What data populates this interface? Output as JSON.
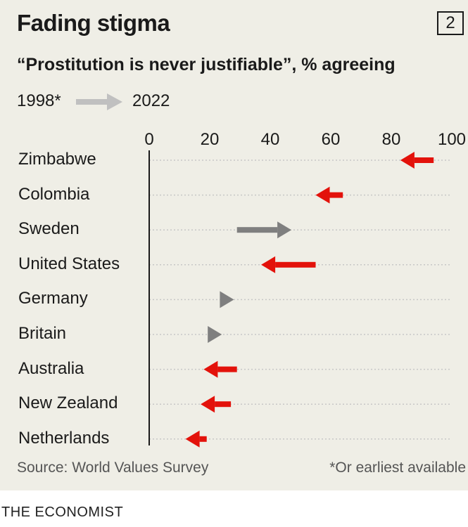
{
  "header": {
    "title": "Fading stigma",
    "chart_number": "2",
    "subtitle": "“Prostitution is never justifiable”, % agreeing"
  },
  "legend": {
    "start_label": "1998*",
    "end_label": "2022"
  },
  "footer": {
    "source": "Source: World Values Survey",
    "note": "*Or earliest available",
    "brand": "THE ECONOMIST"
  },
  "colors": {
    "decrease": "#e3120b",
    "increase": "#7f7f7f",
    "legend_arrow": "#c0c0c0",
    "grid": "#c7c7c7"
  },
  "chart_data": {
    "type": "arrow",
    "title": "Fading stigma",
    "subtitle": "“Prostitution is never justifiable”, % agreeing",
    "xlim": [
      0,
      100
    ],
    "x_ticks": [
      0,
      20,
      40,
      60,
      80,
      100
    ],
    "categories": [
      "Zimbabwe",
      "Colombia",
      "Sweden",
      "United States",
      "Germany",
      "Britain",
      "Australia",
      "New Zealand",
      "Netherlands"
    ],
    "series": [
      {
        "name": "1998*",
        "values": [
          94,
          64,
          29,
          55,
          26,
          24,
          29,
          27,
          19
        ]
      },
      {
        "name": "2022",
        "values": [
          83,
          55,
          47,
          37,
          28,
          24,
          18,
          17,
          12
        ]
      }
    ]
  }
}
